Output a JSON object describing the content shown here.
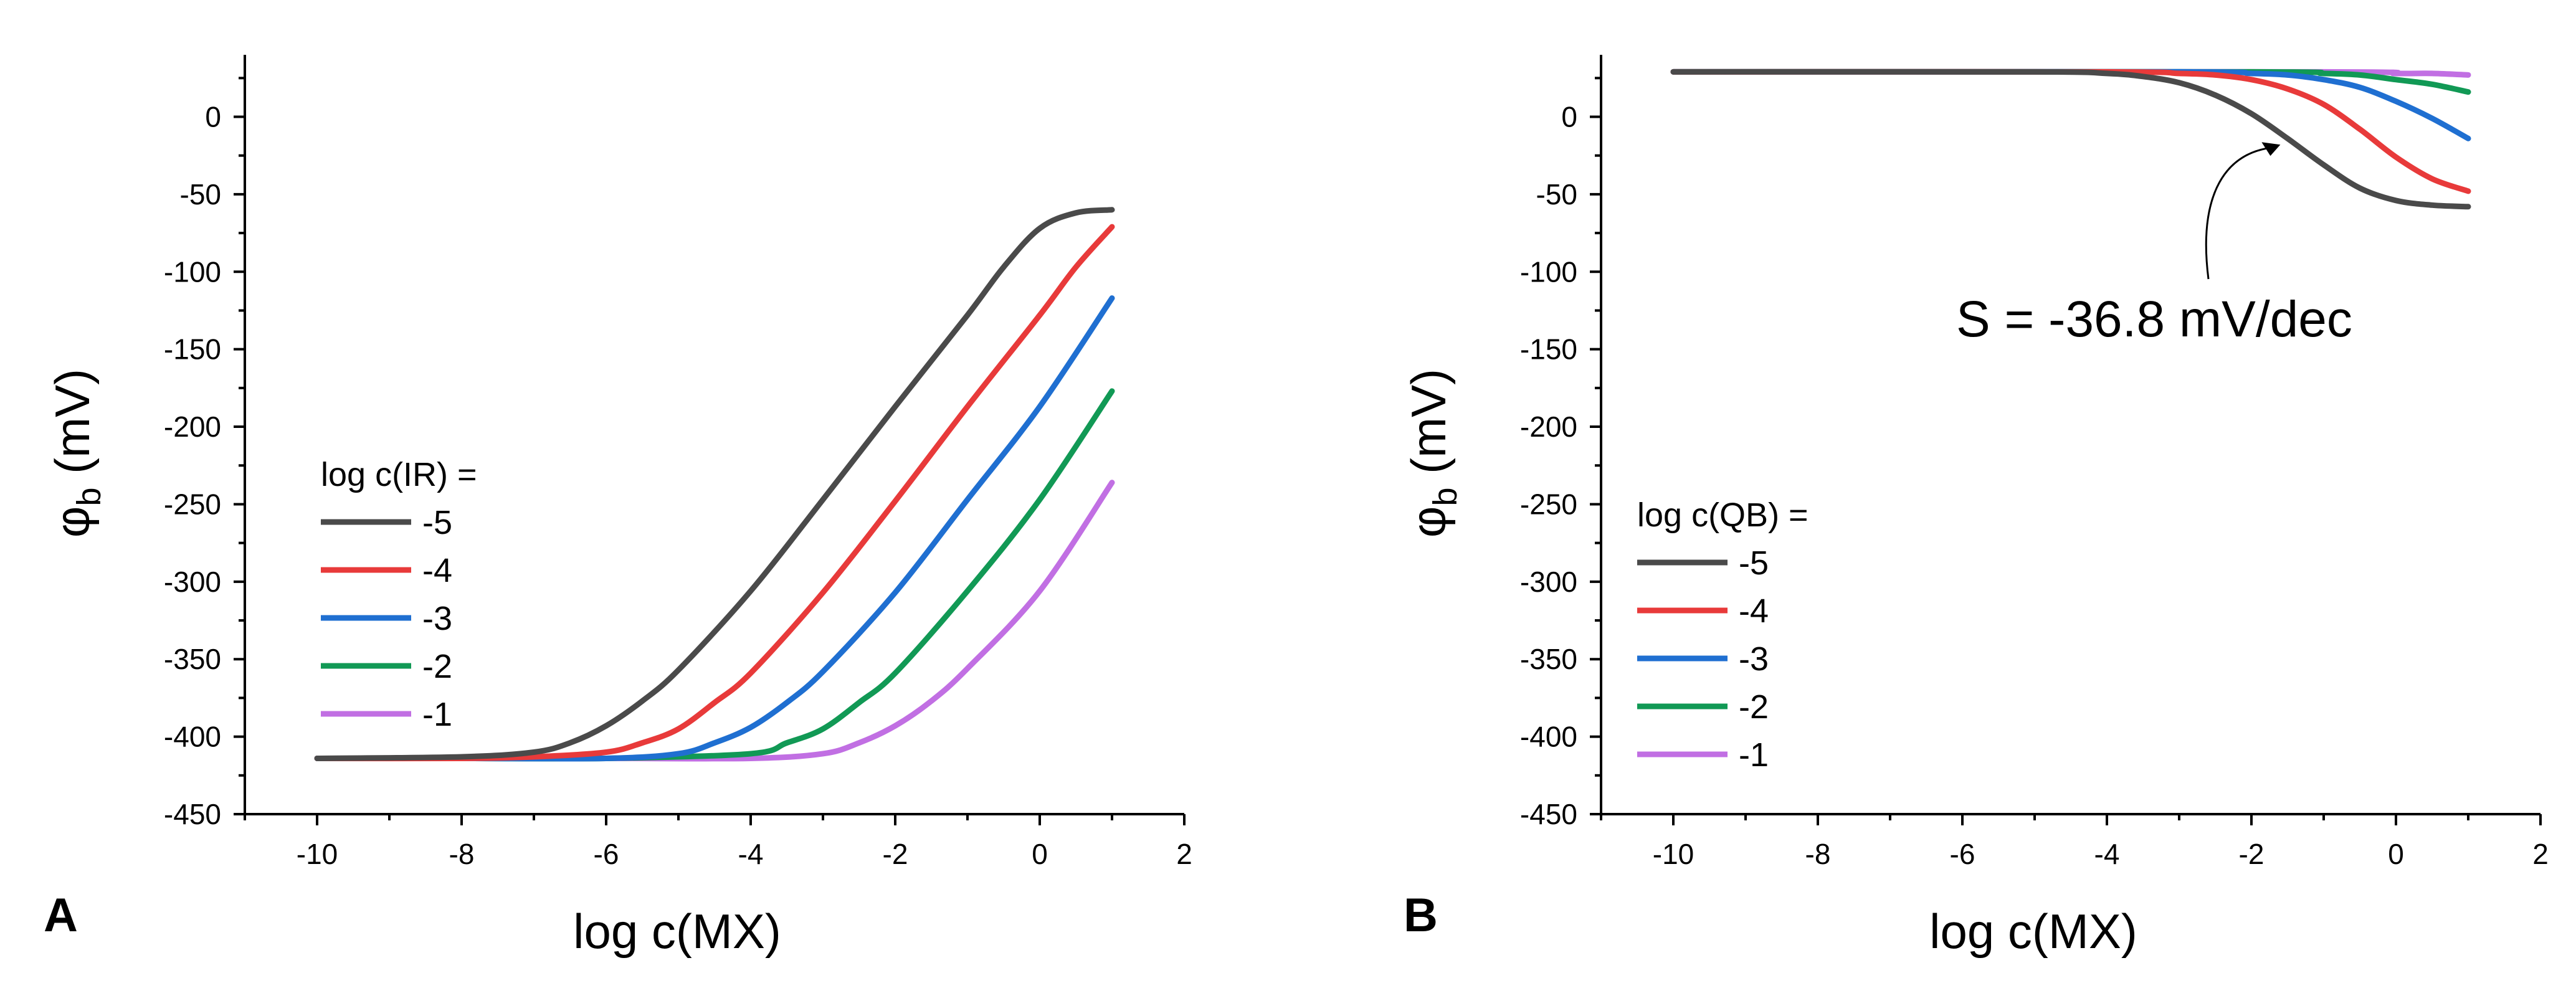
{
  "chart_data": [
    {
      "type": "line",
      "panel": "A",
      "xlabel": "log c(MX)",
      "ylabel": "φ",
      "ylabel_sub": "b",
      "ylabel_unit": " (mV)",
      "xlim": [
        -11,
        2
      ],
      "ylim": [
        -450,
        40
      ],
      "xticks": [
        -10,
        -8,
        -6,
        -4,
        -2,
        0,
        2
      ],
      "yticks": [
        0,
        -50,
        -100,
        -150,
        -200,
        -250,
        -300,
        -350,
        -400,
        -450
      ],
      "legend_title": "log c(IR) =",
      "legend_position": "center-left",
      "series": [
        {
          "name": "-5",
          "color": "#4a4a4a",
          "x": [
            -10,
            -8,
            -7,
            -6.5,
            -6,
            -5.5,
            -5,
            -4,
            -3,
            -2,
            -1,
            -0.5,
            0,
            0.5,
            1
          ],
          "y": [
            -414,
            -413,
            -410,
            -404,
            -393,
            -377,
            -357,
            -306,
            -247,
            -187,
            -128,
            -97,
            -72,
            -62,
            -60
          ]
        },
        {
          "name": "-4",
          "color": "#e83a3a",
          "x": [
            -10,
            -8,
            -7,
            -6,
            -5.5,
            -5,
            -4.5,
            -4,
            -3,
            -2,
            -1,
            0,
            0.5,
            1
          ],
          "y": [
            -414,
            -414,
            -413,
            -410,
            -404,
            -395,
            -378,
            -359,
            -307,
            -248,
            -187,
            -128,
            -97,
            -71
          ]
        },
        {
          "name": "-3",
          "color": "#1f6fd1",
          "x": [
            -10,
            -8,
            -6,
            -5,
            -4.5,
            -4,
            -3.5,
            -3,
            -2,
            -1,
            0,
            1
          ],
          "y": [
            -414,
            -414,
            -414,
            -411,
            -404,
            -394,
            -378,
            -358,
            -307,
            -247,
            -187,
            -117
          ]
        },
        {
          "name": "-2",
          "color": "#119955",
          "x": [
            -10,
            -8,
            -6,
            -4,
            -3.5,
            -3,
            -2.5,
            -2,
            -1,
            0,
            1
          ],
          "y": [
            -414,
            -414,
            -414,
            -411,
            -404,
            -395,
            -378,
            -359,
            -306,
            -247,
            -177
          ]
        },
        {
          "name": "-1",
          "color": "#c16fe3",
          "x": [
            -10,
            -8,
            -6,
            -4,
            -3,
            -2.5,
            -2,
            -1.5,
            -1,
            0,
            1
          ],
          "y": [
            -414,
            -414,
            -414,
            -414,
            -411,
            -404,
            -393,
            -377,
            -356,
            -306,
            -236
          ]
        }
      ]
    },
    {
      "type": "line",
      "panel": "B",
      "xlabel": "log c(MX)",
      "ylabel": "φ",
      "ylabel_sub": "b",
      "ylabel_unit": " (mV)",
      "xlim": [
        -11,
        2
      ],
      "ylim": [
        -450,
        40
      ],
      "xticks": [
        -10,
        -8,
        -6,
        -4,
        -2,
        0,
        2
      ],
      "yticks": [
        0,
        -50,
        -100,
        -150,
        -200,
        -250,
        -300,
        -350,
        -400,
        -450
      ],
      "legend_title": "log c(QB) =",
      "legend_position": "bottom-left",
      "annotation": {
        "text": "S = -36.8 mV/dec",
        "arrow_to_x": -1.6,
        "arrow_to_y": -18
      },
      "series": [
        {
          "name": "-5",
          "color": "#4a4a4a",
          "x": [
            -10,
            -5,
            -4,
            -3.5,
            -3,
            -2.5,
            -2,
            -1.5,
            -1,
            -0.5,
            0,
            0.5,
            1
          ],
          "y": [
            29,
            29,
            28,
            26,
            22,
            14,
            2,
            -14,
            -31,
            -46,
            -54,
            -57,
            -58
          ]
        },
        {
          "name": "-4",
          "color": "#e83a3a",
          "x": [
            -10,
            -4,
            -3,
            -2.5,
            -2,
            -1.5,
            -1,
            -0.5,
            0,
            0.5,
            1
          ],
          "y": [
            29,
            29,
            28,
            27,
            24,
            18,
            8,
            -8,
            -26,
            -40,
            -48
          ]
        },
        {
          "name": "-3",
          "color": "#1f6fd1",
          "x": [
            -10,
            -3,
            -2,
            -1.5,
            -1,
            -0.5,
            0,
            0.5,
            1
          ],
          "y": [
            29,
            29,
            28,
            27,
            24,
            19,
            10,
            -1,
            -14
          ]
        },
        {
          "name": "-2",
          "color": "#119955",
          "x": [
            -10,
            -2,
            -1,
            -0.5,
            0,
            0.5,
            1
          ],
          "y": [
            29,
            29,
            28,
            27,
            24,
            21,
            16
          ]
        },
        {
          "name": "-1",
          "color": "#c16fe3",
          "x": [
            -10,
            -1,
            0,
            0.5,
            1
          ],
          "y": [
            29,
            29,
            28,
            28,
            27
          ]
        }
      ]
    }
  ]
}
